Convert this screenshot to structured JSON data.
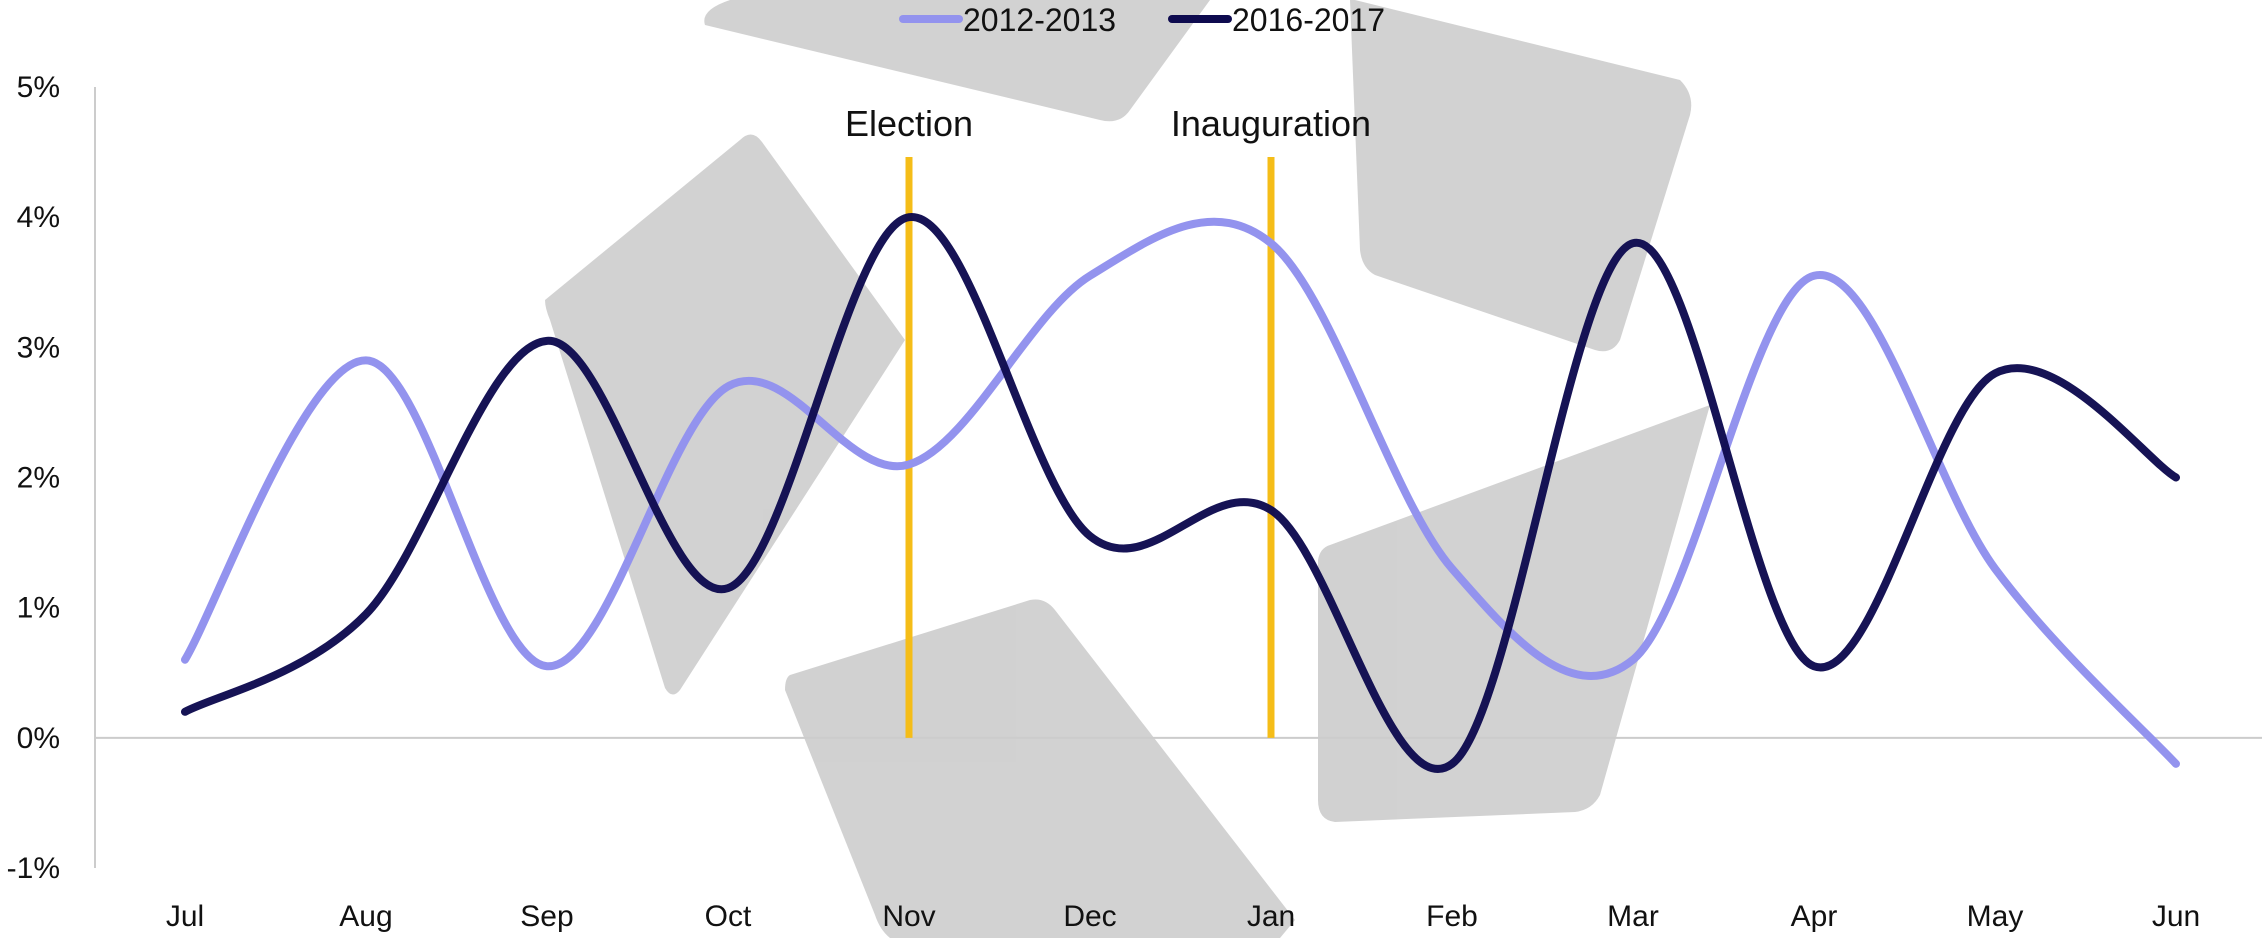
{
  "chart_data": {
    "type": "line",
    "title": "",
    "xlabel": "",
    "ylabel": "",
    "categories": [
      "Jul",
      "Aug",
      "Sep",
      "Oct",
      "Nov",
      "Dec",
      "Jan",
      "Feb",
      "Mar",
      "Apr",
      "May",
      "Jun"
    ],
    "yticks": [
      "-1%",
      "0%",
      "1%",
      "2%",
      "3%",
      "4%",
      "5%"
    ],
    "ylim": [
      -1,
      5
    ],
    "unit": "%",
    "grid": false,
    "legend_position": "top",
    "series": [
      {
        "name": "2012-2013",
        "color": "#9393ee",
        "values": [
          0.6,
          2.9,
          0.55,
          2.7,
          2.1,
          3.55,
          3.8,
          1.3,
          0.6,
          3.55,
          1.3,
          -0.2
        ]
      },
      {
        "name": "2016-2017",
        "color": "#0e0b4f",
        "values": [
          0.2,
          0.95,
          3.05,
          1.15,
          4.0,
          1.55,
          1.75,
          -0.2,
          3.8,
          0.55,
          2.8,
          2.0
        ]
      }
    ],
    "annotations": [
      {
        "label": "Election",
        "category": "Nov",
        "color": "#f5bd18"
      },
      {
        "label": "Inauguration",
        "category": "Jan",
        "color": "#f5bd18"
      }
    ],
    "watermark": {
      "description": "recycle-logo",
      "color": "#c8c8c8"
    }
  }
}
